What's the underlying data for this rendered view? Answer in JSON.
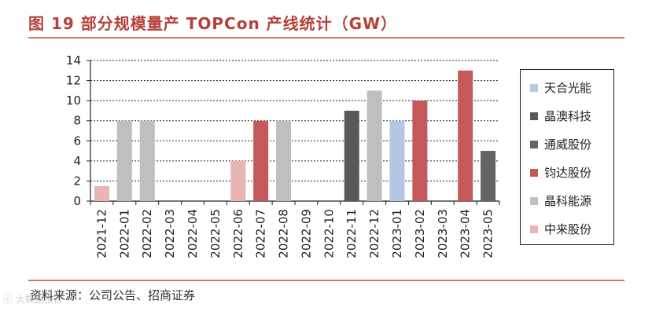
{
  "header": {
    "title": "图 19  部分规模量产 TOPCon 产线统计（GW）"
  },
  "footer": {
    "source": "资料来源：公司公告、招商证券"
  },
  "watermark": {
    "text": "ⓒ 大数据报告"
  },
  "colors": {
    "天合光能": "#B4C7E7",
    "晶澳科技": "#595959",
    "通威股份": "#646464",
    "钧达股份": "#C5585B",
    "晶科能源": "#BFBFBF",
    "中来股份": "#E8B5B5"
  },
  "chart_data": {
    "type": "bar",
    "categories": [
      "2021-12",
      "2022-01",
      "2022-02",
      "2022-03",
      "2022-04",
      "2022-05",
      "2022-06",
      "2022-07",
      "2022-08",
      "2022-09",
      "2022-10",
      "2022-11",
      "2022-12",
      "2023-01",
      "2023-02",
      "2023-03",
      "2023-04",
      "2023-05"
    ],
    "series": [
      {
        "name": "天合光能",
        "values": [
          null,
          null,
          null,
          null,
          null,
          null,
          null,
          null,
          null,
          null,
          null,
          null,
          null,
          8,
          null,
          null,
          null,
          null
        ]
      },
      {
        "name": "晶澳科技",
        "values": [
          null,
          null,
          null,
          null,
          null,
          null,
          null,
          null,
          null,
          null,
          null,
          9,
          null,
          null,
          null,
          null,
          null,
          null
        ]
      },
      {
        "name": "通威股份",
        "values": [
          null,
          null,
          null,
          null,
          null,
          null,
          null,
          null,
          null,
          null,
          null,
          null,
          null,
          null,
          null,
          null,
          null,
          5
        ]
      },
      {
        "name": "钧达股份",
        "values": [
          null,
          null,
          null,
          null,
          null,
          null,
          null,
          8,
          null,
          null,
          null,
          null,
          null,
          null,
          10,
          null,
          13,
          null
        ]
      },
      {
        "name": "晶科能源",
        "values": [
          null,
          8,
          8,
          null,
          null,
          null,
          null,
          null,
          8,
          null,
          null,
          null,
          11,
          null,
          null,
          null,
          null,
          null
        ]
      },
      {
        "name": "中来股份",
        "values": [
          1.5,
          null,
          null,
          null,
          null,
          null,
          4,
          null,
          null,
          null,
          null,
          null,
          null,
          null,
          null,
          null,
          null,
          null
        ]
      }
    ],
    "ylim": [
      0,
      14
    ],
    "yticks": [
      0,
      2,
      4,
      6,
      8,
      10,
      12,
      14
    ],
    "grid": true,
    "legend_position": "right"
  }
}
